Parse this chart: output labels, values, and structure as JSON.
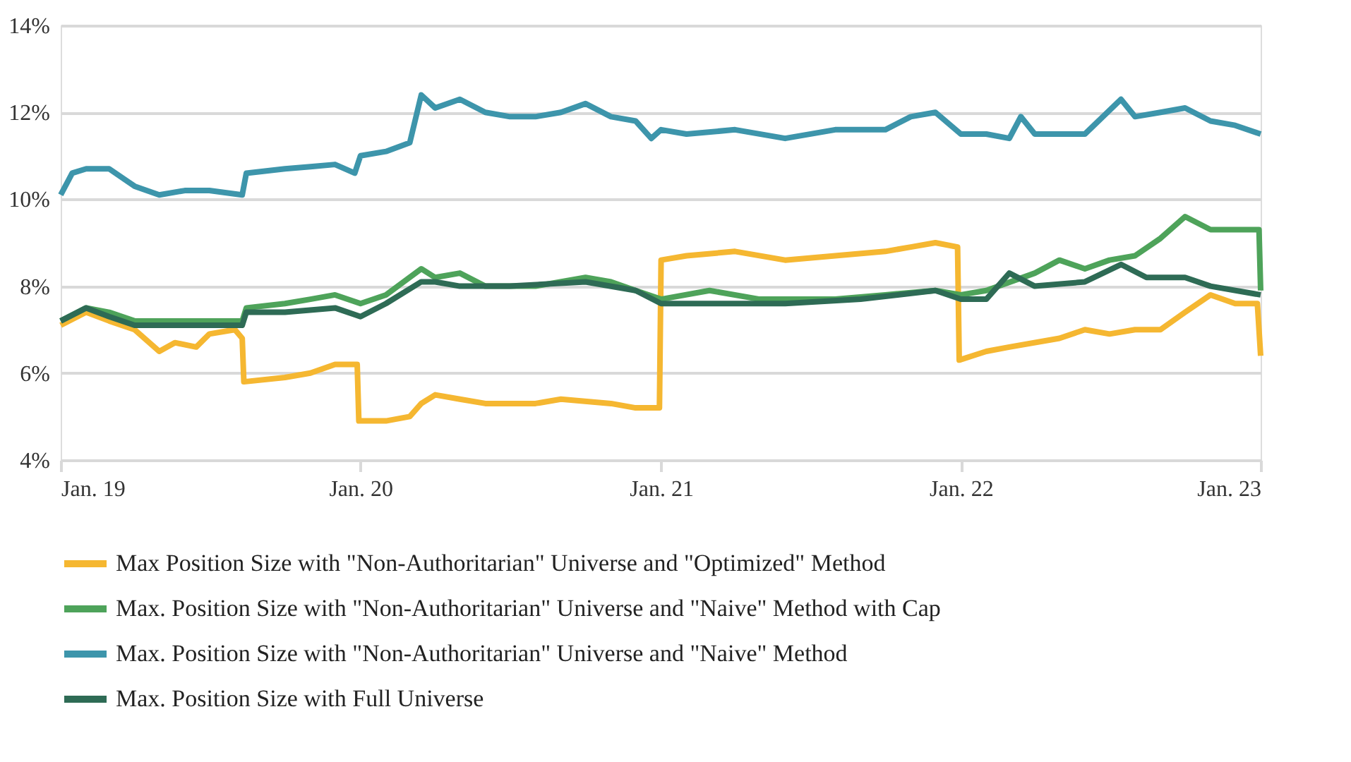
{
  "chart_data": {
    "type": "line",
    "xlim": [
      "2019-01-01",
      "2023-01-01"
    ],
    "xticks": [
      {
        "value": "2019-01-01",
        "label": "Jan. 19"
      },
      {
        "value": "2020-01-01",
        "label": "Jan. 20"
      },
      {
        "value": "2021-01-01",
        "label": "Jan. 21"
      },
      {
        "value": "2022-01-01",
        "label": "Jan. 22"
      },
      {
        "value": "2023-01-01",
        "label": "Jan. 23"
      }
    ],
    "ylim": [
      4,
      14
    ],
    "yticks": [
      {
        "value": 4,
        "label": "4%"
      },
      {
        "value": 6,
        "label": "6%"
      },
      {
        "value": 8,
        "label": "8%"
      },
      {
        "value": 10,
        "label": "10%"
      },
      {
        "value": 12,
        "label": "12%"
      },
      {
        "value": 14,
        "label": "14%"
      }
    ],
    "grid": "y",
    "legend": "bottom",
    "marker": "none",
    "line_style": "solid",
    "series": [
      {
        "name": "Max Position Size with \"Non-Authoritarian\" Universe and \"Optimized\" Method",
        "color": "#f5b731",
        "x": [
          "2019-01-01",
          "2019-02-01",
          "2019-03-01",
          "2019-04-01",
          "2019-05-01",
          "2019-05-20",
          "2019-06-15",
          "2019-07-01",
          "2019-08-01",
          "2019-08-10",
          "2019-08-12",
          "2019-10-01",
          "2019-11-01",
          "2019-12-01",
          "2019-12-28",
          "2019-12-30",
          "2020-02-01",
          "2020-03-01",
          "2020-03-15",
          "2020-04-01",
          "2020-05-01",
          "2020-06-01",
          "2020-08-01",
          "2020-09-01",
          "2020-11-01",
          "2020-12-01",
          "2020-12-30",
          "2021-01-01",
          "2021-02-01",
          "2021-04-01",
          "2021-06-01",
          "2021-08-01",
          "2021-10-01",
          "2021-11-01",
          "2021-12-01",
          "2021-12-28",
          "2021-12-30",
          "2022-02-01",
          "2022-03-01",
          "2022-05-01",
          "2022-06-01",
          "2022-07-01",
          "2022-08-01",
          "2022-09-01",
          "2022-10-01",
          "2022-11-01",
          "2022-12-01",
          "2022-12-28",
          "2023-01-01"
        ],
        "values": [
          7.1,
          7.4,
          7.2,
          7.0,
          6.5,
          6.7,
          6.6,
          6.9,
          7.0,
          6.8,
          5.8,
          5.9,
          6.0,
          6.2,
          6.2,
          4.9,
          4.9,
          5.0,
          5.3,
          5.5,
          5.4,
          5.3,
          5.3,
          5.4,
          5.3,
          5.2,
          5.2,
          8.6,
          8.7,
          8.8,
          8.6,
          8.7,
          8.8,
          8.9,
          9.0,
          8.9,
          6.3,
          6.5,
          6.6,
          6.8,
          7.0,
          6.9,
          7.0,
          7.0,
          7.4,
          7.8,
          7.6,
          7.6,
          6.4
        ]
      },
      {
        "name": "Max. Position Size with \"Non-Authoritarian\" Universe and \"Naive\" Method with Cap",
        "color": "#4ea35a",
        "x": [
          "2019-01-01",
          "2019-02-01",
          "2019-03-01",
          "2019-04-01",
          "2019-05-01",
          "2019-06-01",
          "2019-07-01",
          "2019-08-10",
          "2019-08-15",
          "2019-10-01",
          "2019-11-01",
          "2019-12-01",
          "2020-01-01",
          "2020-02-01",
          "2020-03-15",
          "2020-04-01",
          "2020-05-01",
          "2020-06-01",
          "2020-08-01",
          "2020-10-01",
          "2020-11-01",
          "2020-12-01",
          "2021-01-01",
          "2021-03-01",
          "2021-05-01",
          "2021-08-01",
          "2021-10-01",
          "2021-12-01",
          "2022-01-01",
          "2022-02-01",
          "2022-04-01",
          "2022-05-01",
          "2022-06-01",
          "2022-07-01",
          "2022-08-01",
          "2022-09-01",
          "2022-10-01",
          "2022-11-01",
          "2022-12-01",
          "2022-12-30",
          "2023-01-01"
        ],
        "values": [
          7.2,
          7.5,
          7.4,
          7.2,
          7.2,
          7.2,
          7.2,
          7.2,
          7.5,
          7.6,
          7.7,
          7.8,
          7.6,
          7.8,
          8.4,
          8.2,
          8.3,
          8.0,
          8.0,
          8.2,
          8.1,
          7.9,
          7.7,
          7.9,
          7.7,
          7.7,
          7.8,
          7.9,
          7.8,
          7.9,
          8.3,
          8.6,
          8.4,
          8.6,
          8.7,
          9.1,
          9.6,
          9.3,
          9.3,
          9.3,
          7.9
        ]
      },
      {
        "name": "Max. Position Size with \"Non-Authoritarian\" Universe and \"Naive\" Method",
        "color": "#3d95ab",
        "x": [
          "2019-01-01",
          "2019-01-15",
          "2019-02-01",
          "2019-03-01",
          "2019-04-01",
          "2019-05-01",
          "2019-06-01",
          "2019-07-01",
          "2019-08-10",
          "2019-08-15",
          "2019-10-01",
          "2019-11-01",
          "2019-12-01",
          "2019-12-25",
          "2020-01-01",
          "2020-02-01",
          "2020-03-01",
          "2020-03-15",
          "2020-04-01",
          "2020-05-01",
          "2020-06-01",
          "2020-07-01",
          "2020-08-01",
          "2020-09-01",
          "2020-10-01",
          "2020-11-01",
          "2020-12-01",
          "2020-12-20",
          "2021-01-01",
          "2021-02-01",
          "2021-04-01",
          "2021-06-01",
          "2021-08-01",
          "2021-10-01",
          "2021-11-01",
          "2021-12-01",
          "2022-01-01",
          "2022-02-01",
          "2022-03-01",
          "2022-03-15",
          "2022-04-01",
          "2022-06-01",
          "2022-07-15",
          "2022-08-01",
          "2022-09-01",
          "2022-10-01",
          "2022-11-01",
          "2022-12-01",
          "2023-01-01"
        ],
        "values": [
          10.1,
          10.6,
          10.7,
          10.7,
          10.3,
          10.1,
          10.2,
          10.2,
          10.1,
          10.6,
          10.7,
          10.75,
          10.8,
          10.6,
          11.0,
          11.1,
          11.3,
          12.4,
          12.1,
          12.3,
          12.0,
          11.9,
          11.9,
          12.0,
          12.2,
          11.9,
          11.8,
          11.4,
          11.6,
          11.5,
          11.6,
          11.4,
          11.6,
          11.6,
          11.9,
          12.0,
          11.5,
          11.5,
          11.4,
          11.9,
          11.5,
          11.5,
          12.3,
          11.9,
          12.0,
          12.1,
          11.8,
          11.7,
          11.5
        ]
      },
      {
        "name": "Max. Position Size with Full Universe",
        "color": "#2e6b55",
        "x": [
          "2019-01-01",
          "2019-02-01",
          "2019-03-01",
          "2019-04-01",
          "2019-05-01",
          "2019-07-01",
          "2019-08-10",
          "2019-08-15",
          "2019-10-01",
          "2019-12-01",
          "2020-01-01",
          "2020-02-01",
          "2020-03-15",
          "2020-04-01",
          "2020-05-01",
          "2020-07-01",
          "2020-10-01",
          "2020-12-01",
          "2021-01-01",
          "2021-06-01",
          "2021-09-01",
          "2021-12-01",
          "2022-01-01",
          "2022-02-01",
          "2022-03-01",
          "2022-04-01",
          "2022-06-01",
          "2022-07-15",
          "2022-08-15",
          "2022-10-01",
          "2022-11-01",
          "2023-01-01"
        ],
        "values": [
          7.2,
          7.5,
          7.3,
          7.1,
          7.1,
          7.1,
          7.1,
          7.4,
          7.4,
          7.5,
          7.3,
          7.6,
          8.1,
          8.1,
          8.0,
          8.0,
          8.1,
          7.9,
          7.6,
          7.6,
          7.7,
          7.9,
          7.7,
          7.7,
          8.3,
          8.0,
          8.1,
          8.5,
          8.2,
          8.2,
          8.0,
          7.8
        ]
      }
    ]
  }
}
